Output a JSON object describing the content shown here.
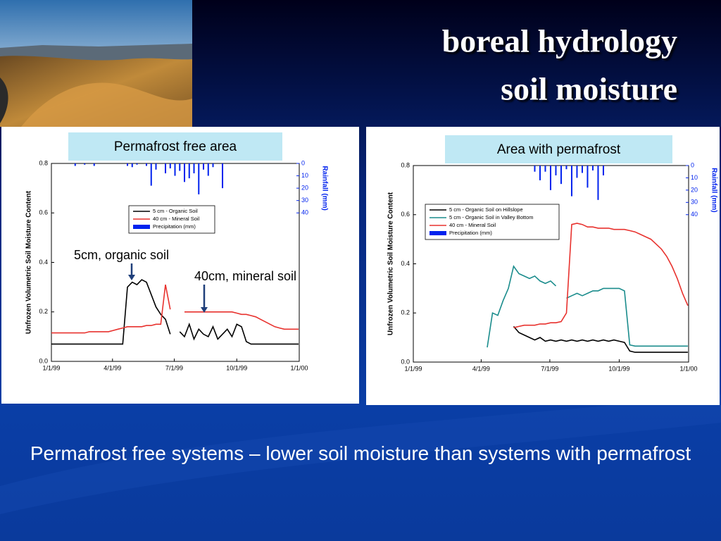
{
  "title": [
    "boreal hydrology",
    "soil moisture"
  ],
  "caption": "Permafrost free systems – lower soil moisture than systems with permafrost",
  "chart_data": [
    {
      "type": "line",
      "panel_label": "Permafrost free area",
      "ylabel": "Unfrozen Volumetric Soil Moisture Content",
      "y2label": "Rainfall (mm)",
      "x": [
        "1/1/99",
        "1/8/99",
        "1/15/99",
        "1/22/99",
        "1/29/99",
        "2/5/99",
        "2/12/99",
        "2/19/99",
        "2/26/99",
        "3/5/99",
        "3/12/99",
        "3/19/99",
        "3/26/99",
        "4/2/99",
        "4/9/99",
        "4/16/99",
        "4/23/99",
        "4/30/99",
        "5/7/99",
        "5/14/99",
        "5/21/99",
        "5/28/99",
        "6/4/99",
        "6/11/99",
        "6/18/99",
        "6/25/99",
        "7/2/99",
        "7/9/99",
        "7/16/99",
        "7/23/99",
        "7/30/99",
        "8/6/99",
        "8/13/99",
        "8/20/99",
        "8/27/99",
        "9/3/99",
        "9/10/99",
        "9/17/99",
        "9/24/99",
        "10/1/99",
        "10/8/99",
        "10/15/99",
        "10/22/99",
        "10/29/99",
        "11/5/99",
        "11/12/99",
        "11/19/99",
        "11/26/99",
        "12/3/99",
        "12/10/99",
        "12/17/99",
        "12/24/99",
        "12/31/99"
      ],
      "xlim": [
        "1/1/99",
        "1/1/00"
      ],
      "xticks": [
        "1/1/99",
        "4/1/99",
        "7/1/99",
        "10/1/99",
        "1/1/00"
      ],
      "ylim": [
        0,
        0.8
      ],
      "yticks": [
        {
          "value": 0,
          "label": "0.0"
        },
        0.2,
        0.4,
        0.6,
        0.8
      ],
      "y2lim": [
        0,
        160
      ],
      "y2ticks": [
        0,
        10,
        20,
        30,
        40
      ],
      "y2_inverted": true,
      "series": [
        {
          "name": "5 cm - Organic Soil",
          "color": "#000000",
          "values": [
            0.07,
            0.07,
            0.07,
            0.07,
            0.07,
            0.07,
            0.07,
            0.07,
            0.07,
            0.07,
            0.07,
            0.07,
            0.07,
            0.07,
            0.07,
            0.07,
            0.3,
            0.32,
            0.31,
            0.33,
            0.32,
            0.27,
            0.22,
            0.19,
            0.17,
            0.11,
            null,
            0.12,
            0.1,
            0.15,
            0.09,
            0.13,
            0.11,
            0.1,
            0.14,
            0.09,
            0.11,
            0.13,
            0.1,
            0.15,
            0.14,
            0.08,
            0.07,
            0.07,
            0.07,
            0.07,
            0.07,
            0.07,
            0.07,
            0.07,
            0.07,
            0.07,
            0.07
          ]
        },
        {
          "name": "40 cm - Mineral Soil",
          "color": "#e8322e",
          "values": [
            0.115,
            0.115,
            0.115,
            0.115,
            0.115,
            0.115,
            0.115,
            0.115,
            0.12,
            0.12,
            0.12,
            0.12,
            0.12,
            0.125,
            0.13,
            0.135,
            0.14,
            0.14,
            0.14,
            0.14,
            0.145,
            0.145,
            0.15,
            0.15,
            0.31,
            0.21,
            null,
            null,
            0.2,
            0.2,
            0.2,
            0.2,
            0.2,
            0.2,
            0.2,
            0.2,
            0.2,
            0.2,
            0.2,
            0.195,
            0.19,
            0.19,
            0.185,
            0.18,
            0.17,
            0.16,
            0.15,
            0.14,
            0.135,
            0.13,
            0.13,
            0.13,
            0.13
          ]
        },
        {
          "name": "Precipitation (mm)",
          "color": "#0022ee",
          "type": "bar",
          "axis": "y2",
          "values": [
            null,
            null,
            null,
            null,
            null,
            2,
            null,
            1,
            null,
            2,
            null,
            null,
            null,
            null,
            null,
            null,
            2,
            3,
            1,
            null,
            2,
            18,
            5,
            null,
            8,
            4,
            10,
            6,
            15,
            12,
            8,
            25,
            5,
            10,
            3,
            null,
            20,
            null,
            null,
            null,
            null,
            null,
            null,
            null,
            null,
            null,
            null,
            null,
            null,
            null,
            null,
            null,
            null
          ]
        }
      ],
      "annotations": [
        "5cm, organic soil",
        "40cm, mineral soil"
      ]
    },
    {
      "type": "line",
      "panel_label": "Area with permafrost",
      "ylabel": "Unfrozen Volumetric Soil Moisture Content",
      "y2label": "Rainfall (mm)",
      "x": [
        "1/1/99",
        "1/8/99",
        "1/15/99",
        "1/22/99",
        "1/29/99",
        "2/5/99",
        "2/12/99",
        "2/19/99",
        "2/26/99",
        "3/5/99",
        "3/12/99",
        "3/19/99",
        "3/26/99",
        "4/2/99",
        "4/9/99",
        "4/16/99",
        "4/23/99",
        "4/30/99",
        "5/7/99",
        "5/14/99",
        "5/21/99",
        "5/28/99",
        "6/4/99",
        "6/11/99",
        "6/18/99",
        "6/25/99",
        "7/2/99",
        "7/9/99",
        "7/16/99",
        "7/23/99",
        "7/30/99",
        "8/6/99",
        "8/13/99",
        "8/20/99",
        "8/27/99",
        "9/3/99",
        "9/10/99",
        "9/17/99",
        "9/24/99",
        "10/1/99",
        "10/8/99",
        "10/15/99",
        "10/22/99",
        "10/29/99",
        "11/5/99",
        "11/12/99",
        "11/19/99",
        "11/26/99",
        "12/3/99",
        "12/10/99",
        "12/17/99",
        "12/24/99",
        "12/31/99"
      ],
      "xlim": [
        "1/1/99",
        "1/1/00"
      ],
      "xticks": [
        "1/1/99",
        "4/1/99",
        "7/1/99",
        "10/1/99",
        "1/1/00"
      ],
      "ylim": [
        0,
        0.8
      ],
      "yticks": [
        {
          "value": 0,
          "label": "0.0"
        },
        0.2,
        0.4,
        0.6,
        0.8
      ],
      "y2lim": [
        0,
        160
      ],
      "y2ticks": [
        0,
        10,
        20,
        30,
        40
      ],
      "y2_inverted": true,
      "series": [
        {
          "name": "5 cm - Organic Soil on Hillslope",
          "color": "#000000",
          "values": [
            null,
            null,
            null,
            null,
            null,
            null,
            null,
            null,
            null,
            null,
            null,
            null,
            null,
            null,
            null,
            null,
            null,
            null,
            null,
            0.145,
            0.12,
            0.11,
            0.1,
            0.09,
            0.1,
            0.085,
            0.09,
            0.085,
            0.09,
            0.085,
            0.09,
            0.085,
            0.09,
            0.085,
            0.09,
            0.085,
            0.09,
            0.085,
            0.09,
            0.085,
            0.08,
            0.045,
            0.04,
            0.04,
            0.04,
            0.04,
            0.04,
            0.04,
            0.04,
            0.04,
            0.04,
            0.04,
            0.04
          ]
        },
        {
          "name": "5 cm - Organic Soil in Valley Bottom",
          "color": "#1a8c8c",
          "values": [
            null,
            null,
            null,
            null,
            null,
            null,
            null,
            null,
            null,
            null,
            null,
            null,
            null,
            null,
            0.06,
            0.2,
            0.19,
            0.25,
            0.3,
            0.39,
            0.36,
            0.35,
            0.34,
            0.35,
            0.33,
            0.32,
            0.33,
            0.31,
            null,
            0.26,
            0.27,
            0.28,
            0.27,
            0.28,
            0.29,
            0.29,
            0.3,
            0.3,
            0.3,
            0.3,
            0.29,
            0.07,
            0.065,
            0.065,
            0.065,
            0.065,
            0.065,
            0.065,
            0.065,
            0.065,
            0.065,
            0.065,
            0.065
          ]
        },
        {
          "name": "40 cm - Mineral Soil",
          "color": "#e8322e",
          "values": [
            null,
            null,
            null,
            null,
            null,
            null,
            null,
            null,
            null,
            null,
            null,
            null,
            null,
            null,
            null,
            null,
            null,
            null,
            null,
            0.14,
            0.145,
            0.15,
            0.15,
            0.15,
            0.155,
            0.155,
            0.16,
            0.16,
            0.165,
            0.2,
            0.56,
            0.565,
            0.56,
            0.55,
            0.55,
            0.545,
            0.545,
            0.545,
            0.54,
            0.54,
            0.54,
            0.535,
            0.53,
            0.52,
            0.51,
            0.5,
            0.48,
            0.46,
            0.43,
            0.39,
            0.34,
            0.28,
            0.23
          ]
        },
        {
          "name": "Precipitation (mm)",
          "color": "#0022ee",
          "type": "bar",
          "axis": "y2",
          "values": [
            null,
            null,
            null,
            null,
            null,
            null,
            null,
            null,
            null,
            null,
            null,
            null,
            null,
            null,
            null,
            null,
            null,
            null,
            null,
            null,
            null,
            null,
            null,
            5,
            12,
            5,
            20,
            8,
            15,
            3,
            25,
            10,
            6,
            18,
            4,
            28,
            8,
            null,
            null,
            null,
            null,
            null,
            null,
            null,
            null,
            null,
            null,
            null,
            null,
            null,
            null,
            null,
            null
          ]
        }
      ]
    }
  ]
}
